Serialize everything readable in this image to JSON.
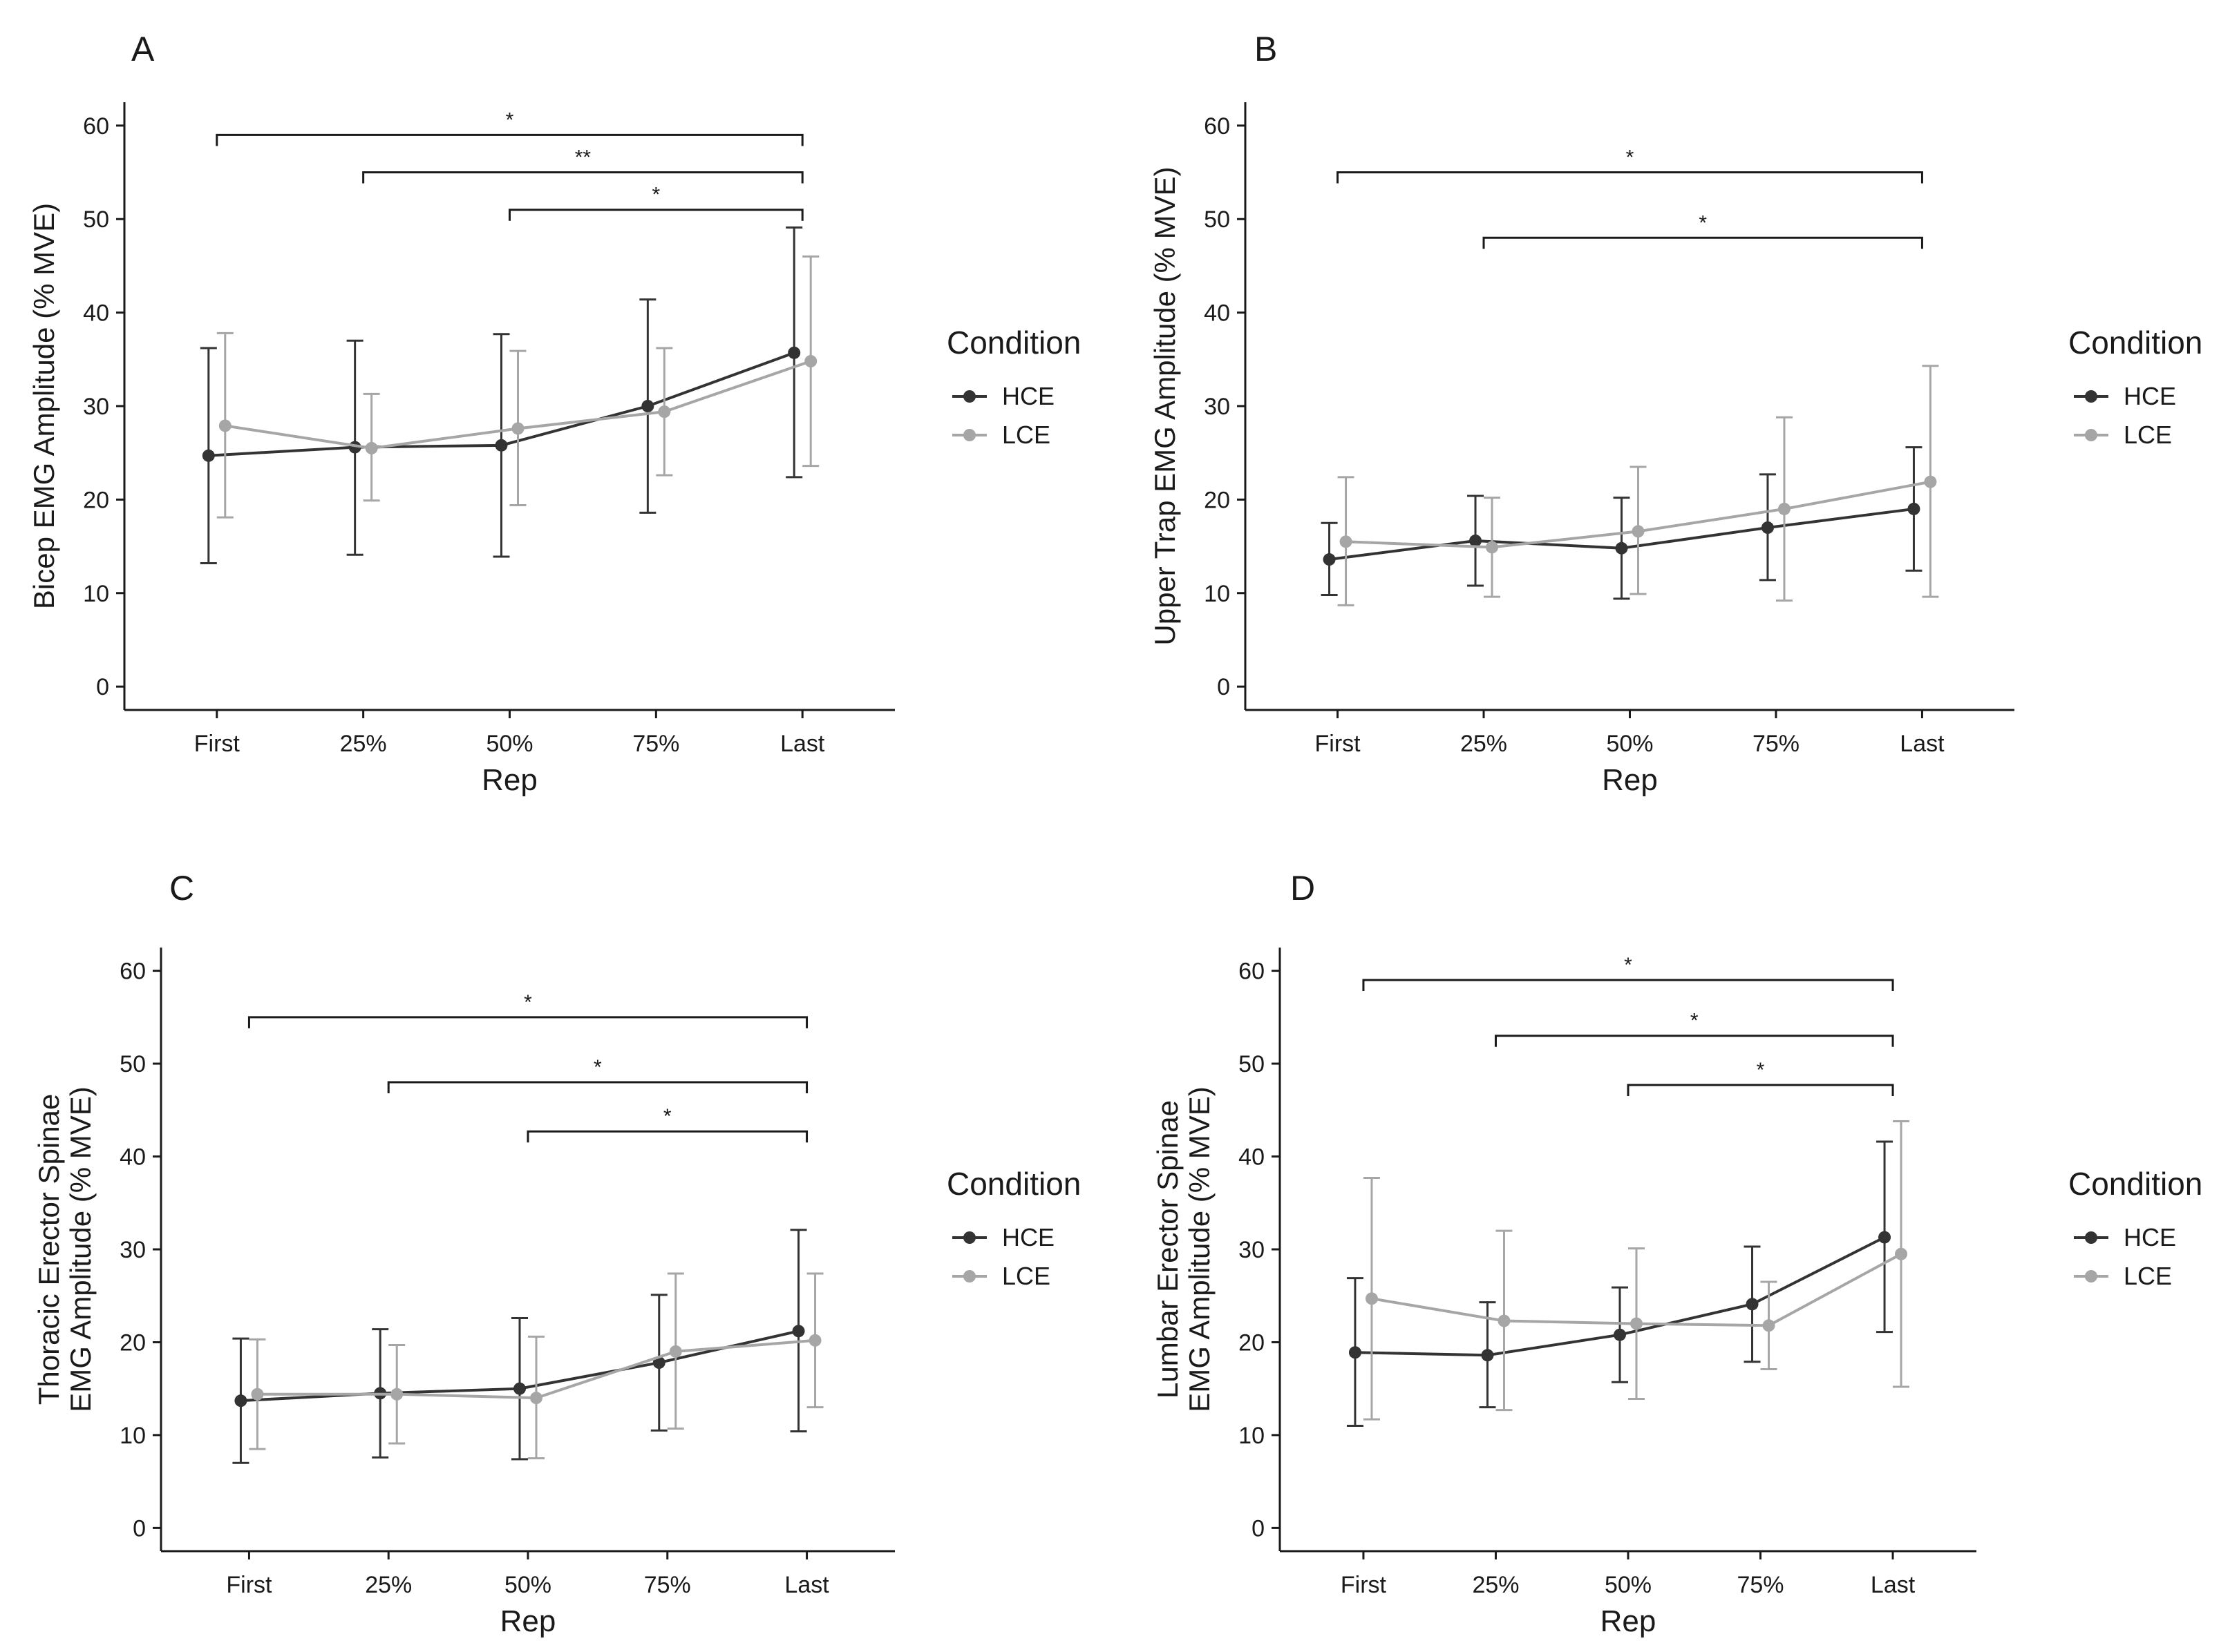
{
  "chart_data": [
    {
      "panel": "A",
      "type": "line",
      "categories": [
        "First",
        "25%",
        "50%",
        "75%",
        "Last"
      ],
      "xlabel": "Rep",
      "ylabel": [
        "Bicep EMG Amplitude (% MVE)"
      ],
      "ylim": [
        0,
        60
      ],
      "yticks": [
        0,
        10,
        20,
        30,
        40,
        50,
        60
      ],
      "grid": false,
      "legend": {
        "title": "Condition",
        "position": "right"
      },
      "series": [
        {
          "name": "HCE",
          "color": "#333333",
          "values": [
            24.7,
            25.6,
            25.8,
            30.0,
            35.7
          ],
          "lower": [
            13.2,
            14.1,
            13.9,
            18.6,
            22.4
          ],
          "upper": [
            36.2,
            37.0,
            37.7,
            41.4,
            49.1
          ]
        },
        {
          "name": "LCE",
          "color": "#a6a6a6",
          "values": [
            27.9,
            25.5,
            27.6,
            29.4,
            34.8
          ],
          "lower": [
            18.1,
            19.9,
            19.4,
            22.6,
            23.6
          ],
          "upper": [
            37.8,
            31.3,
            35.9,
            36.2,
            46.0
          ]
        }
      ],
      "significance": [
        {
          "from": "First",
          "to": "Last",
          "y": 59,
          "label": "*"
        },
        {
          "from": "25%",
          "to": "Last",
          "y": 55,
          "label": "**"
        },
        {
          "from": "50%",
          "to": "Last",
          "y": 51,
          "label": "*"
        }
      ]
    },
    {
      "panel": "B",
      "type": "line",
      "categories": [
        "First",
        "25%",
        "50%",
        "75%",
        "Last"
      ],
      "xlabel": "Rep",
      "ylabel": [
        "Upper Trap EMG Amplitude (% MVE)"
      ],
      "ylim": [
        0,
        60
      ],
      "yticks": [
        0,
        10,
        20,
        30,
        40,
        50,
        60
      ],
      "grid": false,
      "legend": {
        "title": "Condition",
        "position": "right"
      },
      "series": [
        {
          "name": "HCE",
          "color": "#333333",
          "values": [
            13.6,
            15.6,
            14.8,
            17.0,
            19.0
          ],
          "lower": [
            9.8,
            10.8,
            9.4,
            11.4,
            12.4
          ],
          "upper": [
            17.5,
            20.4,
            20.2,
            22.7,
            25.6
          ]
        },
        {
          "name": "LCE",
          "color": "#a6a6a6",
          "values": [
            15.5,
            14.9,
            16.6,
            19.0,
            21.9
          ],
          "lower": [
            8.7,
            9.6,
            9.9,
            9.2,
            9.6
          ],
          "upper": [
            22.4,
            20.2,
            23.5,
            28.8,
            34.3
          ]
        }
      ],
      "significance": [
        {
          "from": "First",
          "to": "Last",
          "y": 55,
          "label": "*"
        },
        {
          "from": "25%",
          "to": "Last",
          "y": 48,
          "label": "*"
        }
      ]
    },
    {
      "panel": "C",
      "type": "line",
      "categories": [
        "First",
        "25%",
        "50%",
        "75%",
        "Last"
      ],
      "xlabel": "Rep",
      "ylabel": [
        "Thoracic Erector Spinae",
        "EMG Amplitude (% MVE)"
      ],
      "ylim": [
        0,
        60
      ],
      "yticks": [
        0,
        10,
        20,
        30,
        40,
        50,
        60
      ],
      "grid": false,
      "legend": {
        "title": "Condition",
        "position": "right"
      },
      "series": [
        {
          "name": "HCE",
          "color": "#333333",
          "values": [
            13.7,
            14.5,
            15.0,
            17.8,
            21.2
          ],
          "lower": [
            7.0,
            7.6,
            7.4,
            10.5,
            10.4
          ],
          "upper": [
            20.4,
            21.4,
            22.6,
            25.1,
            32.1
          ]
        },
        {
          "name": "LCE",
          "color": "#a6a6a6",
          "values": [
            14.4,
            14.4,
            14.0,
            19.0,
            20.2
          ],
          "lower": [
            8.5,
            9.1,
            7.5,
            10.7,
            13.0
          ],
          "upper": [
            20.3,
            19.7,
            20.6,
            27.4,
            27.4
          ]
        }
      ],
      "significance": [
        {
          "from": "First",
          "to": "Last",
          "y": 55,
          "label": "*"
        },
        {
          "from": "25%",
          "to": "Last",
          "y": 48,
          "label": "*"
        },
        {
          "from": "50%",
          "to": "Last",
          "y": 42.7,
          "label": "*"
        }
      ]
    },
    {
      "panel": "D",
      "type": "line",
      "categories": [
        "First",
        "25%",
        "50%",
        "75%",
        "Last"
      ],
      "xlabel": "Rep",
      "ylabel": [
        "Lumbar Erector Spinae",
        "EMG Amplitude (% MVE)"
      ],
      "ylim": [
        0,
        60
      ],
      "yticks": [
        0,
        10,
        20,
        30,
        40,
        50,
        60
      ],
      "grid": false,
      "legend": {
        "title": "Condition",
        "position": "right"
      },
      "series": [
        {
          "name": "HCE",
          "color": "#333333",
          "values": [
            18.9,
            18.6,
            20.8,
            24.1,
            31.3
          ],
          "lower": [
            11.0,
            13.0,
            15.7,
            17.9,
            21.1
          ],
          "upper": [
            26.9,
            24.3,
            25.9,
            30.3,
            41.6
          ]
        },
        {
          "name": "LCE",
          "color": "#a6a6a6",
          "values": [
            24.7,
            22.3,
            22.0,
            21.8,
            29.5
          ],
          "lower": [
            11.7,
            12.7,
            13.9,
            17.1,
            15.2
          ],
          "upper": [
            37.7,
            32.0,
            30.1,
            26.5,
            43.8
          ]
        }
      ],
      "significance": [
        {
          "from": "First",
          "to": "Last",
          "y": 59,
          "label": "*"
        },
        {
          "from": "25%",
          "to": "Last",
          "y": 53,
          "label": "*"
        },
        {
          "from": "50%",
          "to": "Last",
          "y": 47.7,
          "label": "*"
        }
      ]
    }
  ]
}
